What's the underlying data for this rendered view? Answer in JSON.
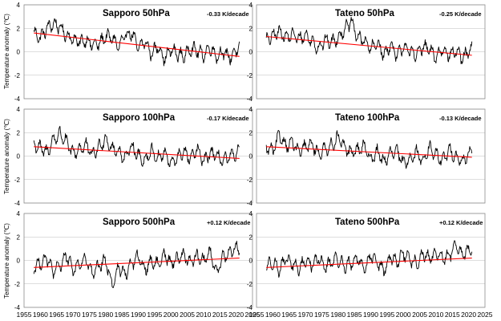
{
  "figure": {
    "y_axis_label": "Temperature anomaly (℃)"
  },
  "chart_data": [
    {
      "type": "line",
      "title": "Sapporo  50hPa",
      "trend_label": "-0.33 K/decade",
      "ylim": [
        -4,
        4
      ],
      "yticks": [
        -4,
        -2,
        0,
        2,
        4
      ],
      "xlim": [
        1955,
        2025
      ],
      "xticks": [
        1955,
        1960,
        1965,
        1970,
        1975,
        1980,
        1985,
        1990,
        1995,
        2000,
        2005,
        2010,
        2015,
        2020,
        2025
      ],
      "x_range": [
        1958,
        2021
      ],
      "grid": true,
      "series": [
        {
          "color": "#000000",
          "x": [
            1958,
            1960,
            1962,
            1964,
            1966,
            1968,
            1970,
            1972,
            1974,
            1976,
            1978,
            1980,
            1982,
            1984,
            1986,
            1988,
            1990,
            1992,
            1994,
            1996,
            1998,
            2000,
            2002,
            2004,
            2006,
            2008,
            2010,
            2012,
            2014,
            2016,
            2018,
            2020,
            2021
          ],
          "values": [
            1.6,
            1.2,
            2.0,
            2.4,
            2.1,
            1.4,
            1.1,
            0.8,
            1.0,
            0.6,
            0.7,
            1.3,
            1.2,
            0.4,
            1.4,
            1.6,
            0.3,
            0.9,
            -0.2,
            0.5,
            -0.6,
            0.2,
            -0.2,
            -0.4,
            0.3,
            0.1,
            -0.3,
            0.4,
            -0.4,
            0.0,
            -0.5,
            0.1,
            0.3
          ]
        }
      ],
      "trend": {
        "color": "#ff0000",
        "start": [
          1958,
          1.6
        ],
        "end": [
          2021,
          -0.4
        ]
      }
    },
    {
      "type": "line",
      "title": "Tateno  50hPa",
      "trend_label": "-0.25 K/decade",
      "ylim": [
        -4,
        4
      ],
      "yticks": [
        -4,
        -2,
        0,
        2,
        4
      ],
      "xlim": [
        1955,
        2025
      ],
      "xticks": [
        1955,
        1960,
        1965,
        1970,
        1975,
        1980,
        1985,
        1990,
        1995,
        2000,
        2005,
        2010,
        2015,
        2020,
        2025
      ],
      "x_range": [
        1958,
        2021
      ],
      "grid": true,
      "series": [
        {
          "color": "#000000",
          "x": [
            1958,
            1960,
            1962,
            1964,
            1966,
            1968,
            1970,
            1972,
            1974,
            1976,
            1978,
            1980,
            1982,
            1984,
            1986,
            1988,
            1990,
            1992,
            1994,
            1996,
            1998,
            2000,
            2002,
            2004,
            2006,
            2008,
            2010,
            2012,
            2014,
            2016,
            2018,
            2020,
            2021
          ],
          "values": [
            1.0,
            1.3,
            1.8,
            1.2,
            1.5,
            1.1,
            1.4,
            0.9,
            0.3,
            1.0,
            0.8,
            1.2,
            1.9,
            2.6,
            1.2,
            1.0,
            0.2,
            0.8,
            -0.3,
            0.6,
            -0.4,
            0.5,
            0.0,
            -0.2,
            0.4,
            0.2,
            -0.5,
            0.3,
            -0.3,
            0.1,
            -0.6,
            0.0,
            0.2
          ]
        }
      ],
      "trend": {
        "color": "#ff0000",
        "start": [
          1958,
          1.3
        ],
        "end": [
          2021,
          -0.3
        ]
      }
    },
    {
      "type": "line",
      "title": "Sapporo  100hPa",
      "trend_label": "-0.17 K/decade",
      "ylim": [
        -4,
        4
      ],
      "yticks": [
        -4,
        -2,
        0,
        2,
        4
      ],
      "xlim": [
        1955,
        2025
      ],
      "xticks": [
        1955,
        1960,
        1965,
        1970,
        1975,
        1980,
        1985,
        1990,
        1995,
        2000,
        2005,
        2010,
        2015,
        2020,
        2025
      ],
      "x_range": [
        1958,
        2021
      ],
      "grid": true,
      "series": [
        {
          "color": "#000000",
          "x": [
            1958,
            1960,
            1962,
            1964,
            1966,
            1968,
            1970,
            1972,
            1974,
            1976,
            1978,
            1980,
            1982,
            1984,
            1986,
            1988,
            1990,
            1992,
            1994,
            1996,
            1998,
            2000,
            2002,
            2004,
            2006,
            2008,
            2010,
            2012,
            2014,
            2016,
            2018,
            2020,
            2021
          ],
          "values": [
            1.0,
            0.7,
            0.3,
            1.4,
            1.9,
            1.2,
            0.2,
            0.6,
            0.9,
            0.1,
            0.8,
            1.5,
            0.6,
            0.4,
            -0.2,
            0.9,
            0.0,
            -0.4,
            0.5,
            -0.2,
            0.3,
            -0.7,
            -0.1,
            0.4,
            -0.3,
            0.6,
            -0.5,
            0.3,
            0.0,
            -0.4,
            -0.1,
            0.2,
            0.4
          ]
        }
      ],
      "trend": {
        "color": "#ff0000",
        "start": [
          1958,
          0.8
        ],
        "end": [
          2021,
          -0.2
        ]
      }
    },
    {
      "type": "line",
      "title": "Tateno  100hPa",
      "trend_label": "-0.13 K/decade",
      "ylim": [
        -4,
        4
      ],
      "yticks": [
        -4,
        -2,
        0,
        2,
        4
      ],
      "xlim": [
        1955,
        2025
      ],
      "xticks": [
        1955,
        1960,
        1965,
        1970,
        1975,
        1980,
        1985,
        1990,
        1995,
        2000,
        2005,
        2010,
        2015,
        2020,
        2025
      ],
      "x_range": [
        1958,
        2021
      ],
      "grid": true,
      "series": [
        {
          "color": "#000000",
          "x": [
            1958,
            1960,
            1962,
            1964,
            1966,
            1968,
            1970,
            1972,
            1974,
            1976,
            1978,
            1980,
            1982,
            1984,
            1986,
            1988,
            1990,
            1992,
            1994,
            1996,
            1998,
            2000,
            2002,
            2004,
            2006,
            2008,
            2010,
            2012,
            2014,
            2016,
            2018,
            2020,
            2021
          ],
          "values": [
            0.8,
            0.4,
            1.8,
            0.9,
            1.2,
            0.3,
            0.8,
            1.0,
            0.2,
            0.6,
            0.9,
            1.6,
            0.7,
            0.3,
            0.5,
            0.8,
            -0.3,
            0.4,
            -0.5,
            0.2,
            0.4,
            -0.6,
            -0.2,
            0.3,
            -0.4,
            0.7,
            0.1,
            -0.4,
            0.5,
            0.0,
            -0.5,
            0.2,
            0.3
          ]
        }
      ],
      "trend": {
        "color": "#ff0000",
        "start": [
          1958,
          0.8
        ],
        "end": [
          2021,
          -0.1
        ]
      }
    },
    {
      "type": "line",
      "title": "Sapporo  500hPa",
      "trend_label": "+0.12 K/decade",
      "ylim": [
        -4,
        4
      ],
      "yticks": [
        -4,
        -2,
        0,
        2,
        4
      ],
      "xlim": [
        1955,
        2025
      ],
      "xticks": [
        1955,
        1960,
        1965,
        1970,
        1975,
        1980,
        1985,
        1990,
        1995,
        2000,
        2005,
        2010,
        2015,
        2020,
        2025
      ],
      "x_range": [
        1958,
        2021
      ],
      "grid": true,
      "series": [
        {
          "color": "#000000",
          "x": [
            1958,
            1960,
            1962,
            1964,
            1966,
            1968,
            1970,
            1972,
            1974,
            1976,
            1978,
            1980,
            1982,
            1984,
            1986,
            1988,
            1990,
            1992,
            1994,
            1996,
            1998,
            2000,
            2002,
            2004,
            2006,
            2008,
            2010,
            2012,
            2014,
            2016,
            2018,
            2020,
            2021
          ],
          "values": [
            -0.6,
            -0.2,
            0.2,
            -1.0,
            -0.4,
            0.4,
            -0.8,
            -0.3,
            0.1,
            -1.2,
            -0.5,
            0.0,
            -2.1,
            -0.6,
            -1.2,
            -0.2,
            0.3,
            -0.8,
            0.0,
            -0.4,
            0.6,
            -0.3,
            0.2,
            0.5,
            -0.2,
            0.4,
            0.0,
            0.7,
            -1.0,
            0.3,
            0.6,
            1.2,
            0.9
          ]
        }
      ],
      "trend": {
        "color": "#ff0000",
        "start": [
          1958,
          -0.6
        ],
        "end": [
          2021,
          0.2
        ]
      }
    },
    {
      "type": "line",
      "title": "Tateno  500hPa",
      "trend_label": "+0.12 K/decade",
      "ylim": [
        -4,
        4
      ],
      "yticks": [
        -4,
        -2,
        0,
        2,
        4
      ],
      "xlim": [
        1955,
        2025
      ],
      "xticks": [
        1955,
        1960,
        1965,
        1970,
        1975,
        1980,
        1985,
        1990,
        1995,
        2000,
        2005,
        2010,
        2015,
        2020,
        2025
      ],
      "x_range": [
        1958,
        2021
      ],
      "grid": true,
      "series": [
        {
          "color": "#000000",
          "x": [
            1958,
            1960,
            1962,
            1964,
            1966,
            1968,
            1970,
            1972,
            1974,
            1976,
            1978,
            1980,
            1982,
            1984,
            1986,
            1988,
            1990,
            1992,
            1994,
            1996,
            1998,
            2000,
            2002,
            2004,
            2006,
            2008,
            2010,
            2012,
            2014,
            2016,
            2018,
            2020,
            2021
          ],
          "values": [
            -0.5,
            -0.1,
            -0.8,
            0.1,
            -0.3,
            -0.7,
            0.0,
            -0.4,
            0.2,
            -0.6,
            -0.1,
            0.1,
            -0.5,
            -0.2,
            0.2,
            -0.7,
            0.4,
            -0.2,
            -0.9,
            0.3,
            -0.1,
            0.6,
            0.0,
            -0.3,
            0.5,
            0.1,
            0.7,
            0.2,
            0.4,
            1.2,
            0.5,
            0.9,
            0.8
          ]
        }
      ],
      "trend": {
        "color": "#ff0000",
        "start": [
          1958,
          -0.6
        ],
        "end": [
          2021,
          0.2
        ]
      }
    }
  ]
}
